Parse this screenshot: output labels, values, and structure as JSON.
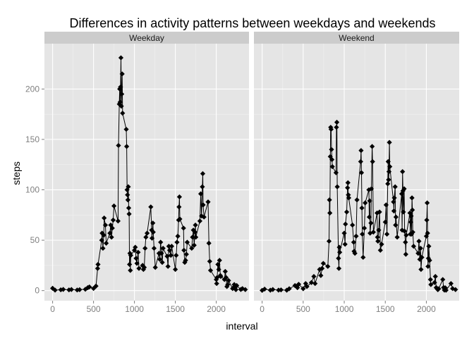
{
  "chart_data": {
    "type": "line",
    "title": "Differences in activity patterns between weekdays and weekends",
    "xlabel": "interval",
    "ylabel": "steps",
    "xlim": [
      -100,
      2400
    ],
    "ylim": [
      -10,
      245
    ],
    "xticks": [
      0,
      500,
      1000,
      1500,
      2000
    ],
    "yticks": [
      0,
      50,
      100,
      150,
      200
    ],
    "grid": true,
    "markers": "diamond",
    "colors": {
      "panel_bg": "#e5e5e5",
      "strip_bg": "#cccccc",
      "grid_major": "#ffffff",
      "line": "#000000"
    },
    "panels": [
      {
        "name": "Weekday",
        "points": [
          [
            0,
            2.3
          ],
          [
            30,
            0.5
          ],
          [
            100,
            0.8
          ],
          [
            130,
            1.2
          ],
          [
            200,
            0.7
          ],
          [
            230,
            1.1
          ],
          [
            300,
            0.6
          ],
          [
            330,
            0.9
          ],
          [
            400,
            1.3
          ],
          [
            430,
            2.9
          ],
          [
            450,
            3.6
          ],
          [
            500,
            2.1
          ],
          [
            530,
            4.5
          ],
          [
            550,
            22
          ],
          [
            555,
            26
          ],
          [
            600,
            50
          ],
          [
            605,
            57
          ],
          [
            615,
            42
          ],
          [
            625,
            55
          ],
          [
            630,
            72
          ],
          [
            645,
            65
          ],
          [
            655,
            47
          ],
          [
            700,
            57
          ],
          [
            710,
            65
          ],
          [
            720,
            53
          ],
          [
            730,
            62
          ],
          [
            740,
            70
          ],
          [
            750,
            84
          ],
          [
            800,
            69
          ],
          [
            805,
            144
          ],
          [
            815,
            185
          ],
          [
            820,
            200
          ],
          [
            825,
            187
          ],
          [
            830,
            202
          ],
          [
            835,
            231
          ],
          [
            840,
            183
          ],
          [
            845,
            195
          ],
          [
            850,
            215
          ],
          [
            855,
            176
          ],
          [
            900,
            160
          ],
          [
            905,
            143
          ],
          [
            910,
            100
          ],
          [
            915,
            95
          ],
          [
            920,
            90
          ],
          [
            925,
            103
          ],
          [
            930,
            82
          ],
          [
            935,
            76
          ],
          [
            940,
            26
          ],
          [
            945,
            37
          ],
          [
            950,
            20
          ],
          [
            955,
            35
          ],
          [
            1000,
            40
          ],
          [
            1010,
            43
          ],
          [
            1020,
            32
          ],
          [
            1030,
            27
          ],
          [
            1045,
            38
          ],
          [
            1055,
            22
          ],
          [
            1100,
            25
          ],
          [
            1110,
            21
          ],
          [
            1120,
            23
          ],
          [
            1130,
            42
          ],
          [
            1140,
            53
          ],
          [
            1155,
            57
          ],
          [
            1200,
            83
          ],
          [
            1210,
            60
          ],
          [
            1215,
            52
          ],
          [
            1225,
            67
          ],
          [
            1230,
            58
          ],
          [
            1240,
            42
          ],
          [
            1255,
            23
          ],
          [
            1300,
            37
          ],
          [
            1310,
            31
          ],
          [
            1320,
            48
          ],
          [
            1330,
            37
          ],
          [
            1340,
            28
          ],
          [
            1350,
            42
          ],
          [
            1400,
            34
          ],
          [
            1410,
            24
          ],
          [
            1420,
            44
          ],
          [
            1430,
            40
          ],
          [
            1445,
            35
          ],
          [
            1455,
            44
          ],
          [
            1500,
            21
          ],
          [
            1510,
            35
          ],
          [
            1520,
            48
          ],
          [
            1530,
            54
          ],
          [
            1540,
            70
          ],
          [
            1545,
            83
          ],
          [
            1550,
            93
          ],
          [
            1555,
            71
          ],
          [
            1600,
            62
          ],
          [
            1605,
            40
          ],
          [
            1615,
            28
          ],
          [
            1625,
            30
          ],
          [
            1635,
            36
          ],
          [
            1645,
            48
          ],
          [
            1700,
            42
          ],
          [
            1710,
            53
          ],
          [
            1720,
            60
          ],
          [
            1730,
            45
          ],
          [
            1740,
            58
          ],
          [
            1745,
            65
          ],
          [
            1750,
            53
          ],
          [
            1800,
            69
          ],
          [
            1810,
            96
          ],
          [
            1820,
            74
          ],
          [
            1830,
            103
          ],
          [
            1835,
            116
          ],
          [
            1840,
            85
          ],
          [
            1850,
            73
          ],
          [
            1900,
            88
          ],
          [
            1910,
            47
          ],
          [
            1920,
            29
          ],
          [
            1930,
            20
          ],
          [
            2000,
            11
          ],
          [
            2005,
            7
          ],
          [
            2010,
            13
          ],
          [
            2020,
            26
          ],
          [
            2030,
            21
          ],
          [
            2040,
            30
          ],
          [
            2050,
            15
          ],
          [
            2055,
            14
          ],
          [
            2100,
            11
          ],
          [
            2110,
            19
          ],
          [
            2120,
            13
          ],
          [
            2130,
            4
          ],
          [
            2140,
            6
          ],
          [
            2150,
            10
          ],
          [
            2200,
            2
          ],
          [
            2210,
            3
          ],
          [
            2220,
            6
          ],
          [
            2230,
            3
          ],
          [
            2240,
            0.9
          ],
          [
            2250,
            5
          ],
          [
            2300,
            1.1
          ],
          [
            2320,
            2
          ],
          [
            2355,
            1
          ]
        ]
      },
      {
        "name": "Weekend",
        "points": [
          [
            0,
            0.2
          ],
          [
            30,
            1.5
          ],
          [
            100,
            0.4
          ],
          [
            130,
            1.1
          ],
          [
            200,
            0.5
          ],
          [
            230,
            0.7
          ],
          [
            300,
            0.4
          ],
          [
            330,
            1.9
          ],
          [
            400,
            5
          ],
          [
            430,
            2.9
          ],
          [
            445,
            6.3
          ],
          [
            500,
            1.9
          ],
          [
            530,
            7
          ],
          [
            545,
            4
          ],
          [
            600,
            8
          ],
          [
            630,
            14
          ],
          [
            645,
            7
          ],
          [
            700,
            21
          ],
          [
            715,
            15
          ],
          [
            730,
            22
          ],
          [
            745,
            27
          ],
          [
            800,
            24
          ],
          [
            815,
            49
          ],
          [
            820,
            90
          ],
          [
            825,
            77
          ],
          [
            830,
            133
          ],
          [
            835,
            162
          ],
          [
            840,
            160
          ],
          [
            845,
            140
          ],
          [
            850,
            130
          ],
          [
            855,
            123
          ],
          [
            900,
            117
          ],
          [
            905,
            162
          ],
          [
            910,
            167
          ],
          [
            915,
            103
          ],
          [
            930,
            32
          ],
          [
            935,
            22
          ],
          [
            940,
            43
          ],
          [
            945,
            38
          ],
          [
            1000,
            57
          ],
          [
            1010,
            46
          ],
          [
            1015,
            66
          ],
          [
            1030,
            78
          ],
          [
            1040,
            102
          ],
          [
            1045,
            107
          ],
          [
            1050,
            95
          ],
          [
            1055,
            92
          ],
          [
            1100,
            65
          ],
          [
            1115,
            48
          ],
          [
            1120,
            39
          ],
          [
            1130,
            37
          ],
          [
            1145,
            54
          ],
          [
            1155,
            90
          ],
          [
            1200,
            128
          ],
          [
            1205,
            139
          ],
          [
            1210,
            117
          ],
          [
            1215,
            82
          ],
          [
            1220,
            56
          ],
          [
            1230,
            33
          ],
          [
            1245,
            62
          ],
          [
            1255,
            87
          ],
          [
            1300,
            100
          ],
          [
            1305,
            73
          ],
          [
            1310,
            89
          ],
          [
            1315,
            57
          ],
          [
            1325,
            67
          ],
          [
            1330,
            101
          ],
          [
            1340,
            143
          ],
          [
            1345,
            128
          ],
          [
            1355,
            58
          ],
          [
            1400,
            77
          ],
          [
            1405,
            53
          ],
          [
            1410,
            49
          ],
          [
            1420,
            60
          ],
          [
            1430,
            78
          ],
          [
            1440,
            40
          ],
          [
            1455,
            46
          ],
          [
            1500,
            68
          ],
          [
            1510,
            85
          ],
          [
            1520,
            56
          ],
          [
            1530,
            106
          ],
          [
            1535,
            128
          ],
          [
            1540,
            110
          ],
          [
            1545,
            118
          ],
          [
            1550,
            147
          ],
          [
            1555,
            123
          ],
          [
            1600,
            88
          ],
          [
            1605,
            79
          ],
          [
            1610,
            92
          ],
          [
            1620,
            103
          ],
          [
            1625,
            65
          ],
          [
            1630,
            73
          ],
          [
            1645,
            53
          ],
          [
            1700,
            96
          ],
          [
            1705,
            60
          ],
          [
            1710,
            118
          ],
          [
            1715,
            99
          ],
          [
            1720,
            78
          ],
          [
            1730,
            101
          ],
          [
            1735,
            59
          ],
          [
            1745,
            48
          ],
          [
            1750,
            36
          ],
          [
            1755,
            55
          ],
          [
            1800,
            77
          ],
          [
            1805,
            56
          ],
          [
            1810,
            68
          ],
          [
            1815,
            74
          ],
          [
            1820,
            56
          ],
          [
            1825,
            92
          ],
          [
            1830,
            80
          ],
          [
            1835,
            58
          ],
          [
            1845,
            44
          ],
          [
            1900,
            37
          ],
          [
            1910,
            49
          ],
          [
            1920,
            31
          ],
          [
            1930,
            42
          ],
          [
            1935,
            21
          ],
          [
            1945,
            33
          ],
          [
            2000,
            54
          ],
          [
            2005,
            70
          ],
          [
            2010,
            87
          ],
          [
            2015,
            57
          ],
          [
            2020,
            24
          ],
          [
            2025,
            32
          ],
          [
            2030,
            44
          ],
          [
            2040,
            30
          ],
          [
            2050,
            11
          ],
          [
            2055,
            6
          ],
          [
            2100,
            8
          ],
          [
            2110,
            14
          ],
          [
            2120,
            3
          ],
          [
            2130,
            2
          ],
          [
            2140,
            0.9
          ],
          [
            2150,
            1.8
          ],
          [
            2200,
            11
          ],
          [
            2210,
            3
          ],
          [
            2220,
            0.5
          ],
          [
            2230,
            2.8
          ],
          [
            2240,
            0.4
          ],
          [
            2300,
            7
          ],
          [
            2320,
            2
          ],
          [
            2355,
            1
          ]
        ]
      }
    ]
  }
}
